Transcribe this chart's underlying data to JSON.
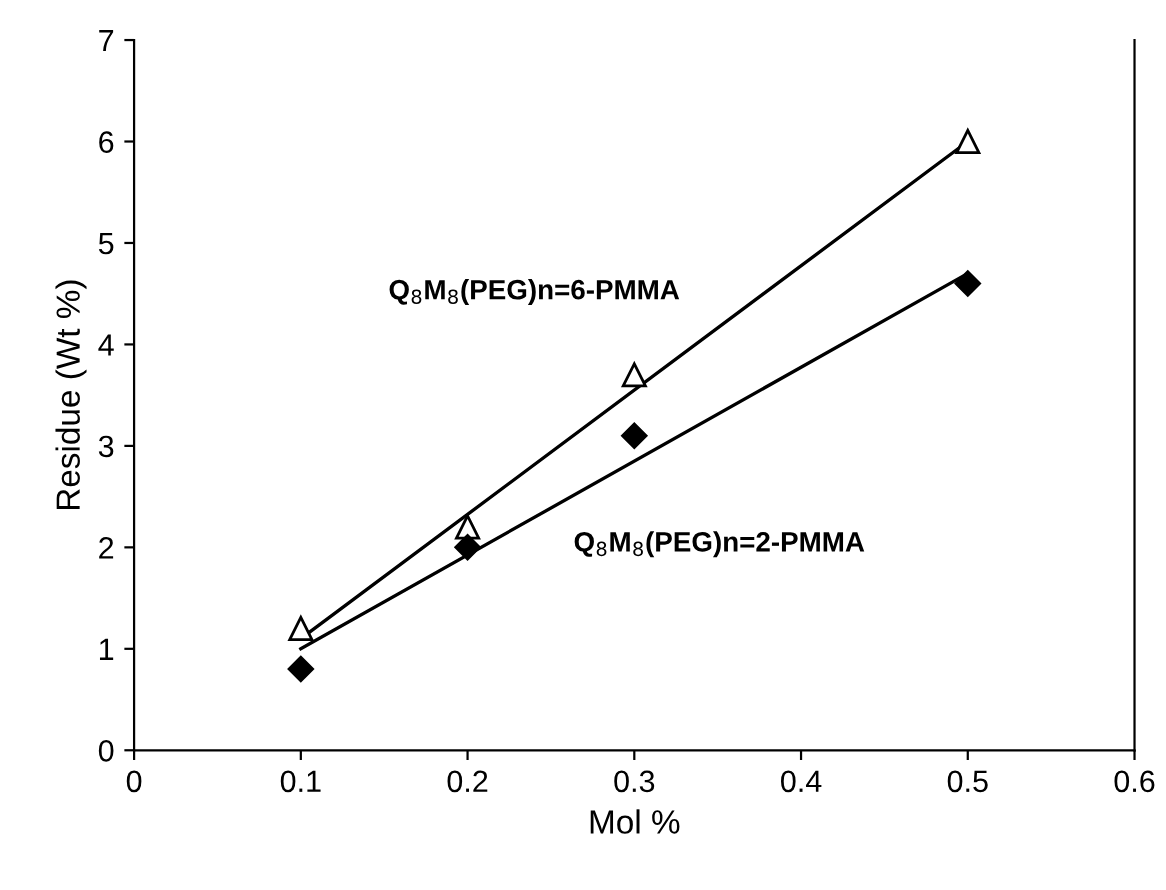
{
  "chart_data": {
    "type": "scatter",
    "xlabel": "Mol %",
    "ylabel": "Residue (Wt %)",
    "xlim": [
      0,
      0.6
    ],
    "ylim": [
      0,
      7
    ],
    "xticks": [
      0,
      0.1,
      0.2,
      0.3,
      0.4,
      0.5,
      0.6
    ],
    "yticks": [
      0,
      1,
      2,
      3,
      4,
      5,
      6,
      7
    ],
    "grid": false,
    "legend": false,
    "series": [
      {
        "marker": "triangle",
        "color": "#000000",
        "x": [
          0.1,
          0.2,
          0.3,
          0.5
        ],
        "values": [
          1.2,
          2.2,
          3.7,
          6.0
        ]
      },
      {
        "marker": "diamond",
        "color": "#000000",
        "x": [
          0.1,
          0.2,
          0.3,
          0.5
        ],
        "values": [
          0.8,
          2.0,
          3.1,
          4.6
        ]
      },
      {
        "type": "line",
        "marker": "none",
        "line_style": "solid",
        "color": "#000000",
        "x": [
          0.1,
          0.5
        ],
        "values": [
          1.1,
          6.0
        ]
      },
      {
        "type": "line",
        "marker": "none",
        "line_style": "solid",
        "color": "#000000",
        "x": [
          0.1,
          0.5
        ],
        "values": [
          1.0,
          4.7
        ]
      }
    ],
    "annotations": [
      "Q$_{8}$M$_{8}$(PEG)n=6-PMMA",
      "Q$_{8}$M$_{8}$(PEG)n=2-PMMA"
    ]
  }
}
